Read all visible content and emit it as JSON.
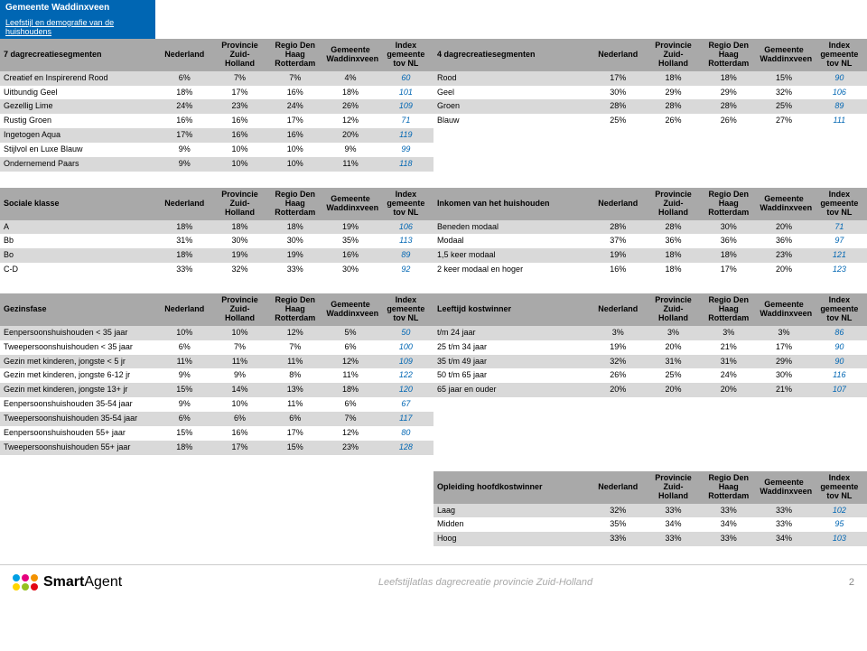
{
  "title": {
    "municipality": "Gemeente Waddinxveen",
    "subtitle": "Leefstijl en demografie van de huishoudens"
  },
  "columns": [
    "Nederland",
    "Provincie Zuid-Holland",
    "Regio Den Haag Rotterdam",
    "Gemeente Waddinxveen",
    "Index gemeente tov NL"
  ],
  "sections": [
    {
      "left": {
        "title": "7 dagrecreatiesegmenten",
        "rows": [
          {
            "label": "Creatief en Inspirerend Rood",
            "v": [
              "6%",
              "7%",
              "7%",
              "4%",
              "60"
            ]
          },
          {
            "label": "Uitbundig Geel",
            "v": [
              "18%",
              "17%",
              "16%",
              "18%",
              "101"
            ]
          },
          {
            "label": "Gezellig Lime",
            "v": [
              "24%",
              "23%",
              "24%",
              "26%",
              "109"
            ]
          },
          {
            "label": "Rustig Groen",
            "v": [
              "16%",
              "16%",
              "17%",
              "12%",
              "71"
            ]
          },
          {
            "label": "Ingetogen Aqua",
            "v": [
              "17%",
              "16%",
              "16%",
              "20%",
              "119"
            ]
          },
          {
            "label": "Stijlvol en Luxe Blauw",
            "v": [
              "9%",
              "10%",
              "10%",
              "9%",
              "99"
            ]
          },
          {
            "label": "Ondernemend Paars",
            "v": [
              "9%",
              "10%",
              "10%",
              "11%",
              "118"
            ]
          }
        ]
      },
      "right": {
        "title": "4 dagrecreatiesegmenten",
        "rows": [
          {
            "label": "Rood",
            "v": [
              "17%",
              "18%",
              "18%",
              "15%",
              "90"
            ]
          },
          {
            "label": "Geel",
            "v": [
              "30%",
              "29%",
              "29%",
              "32%",
              "106"
            ]
          },
          {
            "label": "Groen",
            "v": [
              "28%",
              "28%",
              "28%",
              "25%",
              "89"
            ]
          },
          {
            "label": "Blauw",
            "v": [
              "25%",
              "26%",
              "26%",
              "27%",
              "111"
            ]
          }
        ]
      }
    },
    {
      "left": {
        "title": "Sociale klasse",
        "rows": [
          {
            "label": "A",
            "v": [
              "18%",
              "18%",
              "18%",
              "19%",
              "106"
            ]
          },
          {
            "label": "Bb",
            "v": [
              "31%",
              "30%",
              "30%",
              "35%",
              "113"
            ]
          },
          {
            "label": "Bo",
            "v": [
              "18%",
              "19%",
              "19%",
              "16%",
              "89"
            ]
          },
          {
            "label": "C-D",
            "v": [
              "33%",
              "32%",
              "33%",
              "30%",
              "92"
            ]
          }
        ]
      },
      "right": {
        "title": "Inkomen van het huishouden",
        "rows": [
          {
            "label": "Beneden modaal",
            "v": [
              "28%",
              "28%",
              "30%",
              "20%",
              "71"
            ]
          },
          {
            "label": "Modaal",
            "v": [
              "37%",
              "36%",
              "36%",
              "36%",
              "97"
            ]
          },
          {
            "label": "1,5 keer modaal",
            "v": [
              "19%",
              "18%",
              "18%",
              "23%",
              "121"
            ]
          },
          {
            "label": "2 keer modaal en hoger",
            "v": [
              "16%",
              "18%",
              "17%",
              "20%",
              "123"
            ]
          }
        ]
      }
    },
    {
      "left": {
        "title": "Gezinsfase",
        "rows": [
          {
            "label": "Eenpersoonshuishouden < 35 jaar",
            "v": [
              "10%",
              "10%",
              "12%",
              "5%",
              "50"
            ]
          },
          {
            "label": "Tweepersoonshuishouden < 35 jaar",
            "v": [
              "6%",
              "7%",
              "7%",
              "6%",
              "100"
            ]
          },
          {
            "label": "Gezin met kinderen, jongste < 5 jr",
            "v": [
              "11%",
              "11%",
              "11%",
              "12%",
              "109"
            ]
          },
          {
            "label": "Gezin met kinderen, jongste 6-12 jr",
            "v": [
              "9%",
              "9%",
              "8%",
              "11%",
              "122"
            ]
          },
          {
            "label": "Gezin met kinderen, jongste 13+ jr",
            "v": [
              "15%",
              "14%",
              "13%",
              "18%",
              "120"
            ]
          },
          {
            "label": "Eenpersoonshuishouden 35-54 jaar",
            "v": [
              "9%",
              "10%",
              "11%",
              "6%",
              "67"
            ]
          },
          {
            "label": "Tweepersoonshuishouden 35-54 jaar",
            "v": [
              "6%",
              "6%",
              "6%",
              "7%",
              "117"
            ]
          },
          {
            "label": "Eenpersoonshuishouden 55+ jaar",
            "v": [
              "15%",
              "16%",
              "17%",
              "12%",
              "80"
            ]
          },
          {
            "label": "Tweepersoonshuishouden 55+ jaar",
            "v": [
              "18%",
              "17%",
              "15%",
              "23%",
              "128"
            ]
          }
        ]
      },
      "right": {
        "title": "Leeftijd kostwinner",
        "rows": [
          {
            "label": "t/m 24 jaar",
            "v": [
              "3%",
              "3%",
              "3%",
              "3%",
              "86"
            ]
          },
          {
            "label": "25 t/m 34 jaar",
            "v": [
              "19%",
              "20%",
              "21%",
              "17%",
              "90"
            ]
          },
          {
            "label": "35 t/m 49 jaar",
            "v": [
              "32%",
              "31%",
              "31%",
              "29%",
              "90"
            ]
          },
          {
            "label": "50 t/m 65 jaar",
            "v": [
              "26%",
              "25%",
              "24%",
              "30%",
              "116"
            ]
          },
          {
            "label": "65 jaar en ouder",
            "v": [
              "20%",
              "20%",
              "20%",
              "21%",
              "107"
            ]
          }
        ]
      }
    },
    {
      "left": null,
      "right": {
        "title": "Opleiding hoofdkostwinner",
        "rows": [
          {
            "label": "Laag",
            "v": [
              "32%",
              "33%",
              "33%",
              "33%",
              "102"
            ]
          },
          {
            "label": "Midden",
            "v": [
              "35%",
              "34%",
              "34%",
              "33%",
              "95"
            ]
          },
          {
            "label": "Hoog",
            "v": [
              "33%",
              "33%",
              "33%",
              "34%",
              "103"
            ]
          }
        ]
      }
    }
  ],
  "logo_colors": [
    "#009fe3",
    "#e6007e",
    "#f39200",
    "#ffd500",
    "#95c11f",
    "#e30613"
  ],
  "footer": {
    "brand1": "Smart",
    "brand2": "Agent",
    "center": "Leefstijlatlas dagrecreatie provincie Zuid-Holland",
    "page": "2"
  }
}
